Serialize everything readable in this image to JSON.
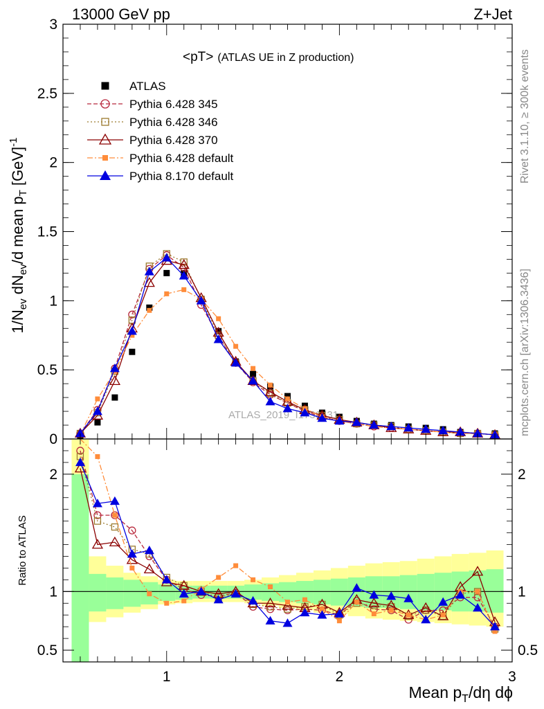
{
  "header": {
    "left": "13000 GeV pp",
    "right": "Z+Jet"
  },
  "side_labels": {
    "rivet": "Rivet 3.1.10, ≥ 300k events",
    "mcplots": "mcplots.cern.ch [arXiv:1306.3436]"
  },
  "watermark": "ATLAS_2019_I1736531",
  "legend_title": {
    "main": "<pT>",
    "sub": "(ATLAS UE in Z production)"
  },
  "colors": {
    "atlas": "#000000",
    "p345": "#b8283c",
    "p346": "#9c7a2e",
    "p370": "#8b0000",
    "pdef": "#ff8c3a",
    "p8": "#0000e0",
    "band_green": "#99ff99",
    "band_yellow": "#ffff99"
  },
  "chart_data": [
    {
      "type": "line",
      "name": "main",
      "ylabel": "1/N_ev dN_ev/d mean p_T [GeV]^-1",
      "xlim": [
        0.4,
        3.0
      ],
      "ylim": [
        0,
        3
      ],
      "yticks": [
        "0",
        "0.5",
        "1",
        "1.5",
        "2",
        "2.5",
        "3"
      ],
      "ytick_values": [
        0,
        0.5,
        1,
        1.5,
        2,
        2.5,
        3
      ],
      "x": [
        0.5,
        0.6,
        0.7,
        0.8,
        0.9,
        1.0,
        1.1,
        1.2,
        1.3,
        1.4,
        1.5,
        1.6,
        1.7,
        1.8,
        1.9,
        2.0,
        2.1,
        2.2,
        2.3,
        2.4,
        2.5,
        2.6,
        2.7,
        2.8,
        2.9
      ],
      "series": [
        {
          "name": "ATLAS",
          "key": "atlas",
          "values": [
            0.02,
            0.12,
            0.3,
            0.63,
            0.95,
            1.2,
            1.2,
            1.0,
            0.78,
            0.56,
            0.47,
            0.38,
            0.31,
            0.24,
            0.19,
            0.16,
            0.13,
            0.11,
            0.1,
            0.09,
            0.08,
            0.07,
            0.05,
            0.04,
            0.04
          ]
        },
        {
          "name": "Pythia 6.428 345",
          "key": "p345",
          "values": [
            0.04,
            0.21,
            0.51,
            0.9,
            1.23,
            1.33,
            1.24,
            0.97,
            0.74,
            0.55,
            0.41,
            0.32,
            0.26,
            0.2,
            0.16,
            0.13,
            0.11,
            0.09,
            0.08,
            0.07,
            0.06,
            0.05,
            0.04,
            0.04,
            0.03
          ]
        },
        {
          "name": "Pythia 6.428 346",
          "key": "p346",
          "values": [
            0.04,
            0.19,
            0.49,
            0.86,
            1.25,
            1.34,
            1.28,
            1.01,
            0.75,
            0.55,
            0.42,
            0.33,
            0.26,
            0.21,
            0.17,
            0.14,
            0.11,
            0.1,
            0.09,
            0.07,
            0.06,
            0.05,
            0.04,
            0.04,
            0.03
          ]
        },
        {
          "name": "Pythia 6.428 370",
          "key": "p370",
          "values": [
            0.04,
            0.17,
            0.42,
            0.8,
            1.13,
            1.29,
            1.26,
            1.02,
            0.77,
            0.56,
            0.42,
            0.34,
            0.27,
            0.21,
            0.17,
            0.14,
            0.12,
            0.1,
            0.08,
            0.07,
            0.06,
            0.05,
            0.05,
            0.04,
            0.03
          ]
        },
        {
          "name": "Pythia 6.428 default",
          "key": "pdef",
          "values": [
            0.03,
            0.29,
            0.49,
            0.75,
            0.93,
            1.05,
            1.08,
            1.01,
            0.87,
            0.67,
            0.51,
            0.39,
            0.29,
            0.22,
            0.16,
            0.13,
            0.11,
            0.09,
            0.08,
            0.07,
            0.06,
            0.05,
            0.04,
            0.04,
            0.03
          ]
        },
        {
          "name": "Pythia 8.170 default",
          "key": "p8",
          "values": [
            0.04,
            0.2,
            0.51,
            0.78,
            1.21,
            1.31,
            1.18,
            1.0,
            0.72,
            0.55,
            0.42,
            0.27,
            0.22,
            0.19,
            0.15,
            0.13,
            0.12,
            0.1,
            0.09,
            0.08,
            0.07,
            0.06,
            0.05,
            0.04,
            0.03
          ]
        }
      ]
    },
    {
      "type": "line",
      "name": "ratio",
      "xlabel": "Mean p_T/dη dϕ",
      "ylabel": "Ratio to ATLAS",
      "xlim": [
        0.4,
        3.0
      ],
      "ylim": [
        0.4,
        2.3
      ],
      "xticks": [
        "1",
        "2",
        "3"
      ],
      "xtick_values": [
        1,
        2,
        3
      ],
      "yticks": [
        "0.5",
        "1",
        "2"
      ],
      "ytick_values": [
        0.5,
        1,
        2
      ],
      "x": [
        0.5,
        0.6,
        0.7,
        0.8,
        0.9,
        1.0,
        1.1,
        1.2,
        1.3,
        1.4,
        1.5,
        1.6,
        1.7,
        1.8,
        1.9,
        2.0,
        2.1,
        2.2,
        2.3,
        2.4,
        2.5,
        2.6,
        2.7,
        2.8,
        2.9
      ],
      "bands": {
        "green_lo": [
          0.3,
          0.83,
          0.85,
          0.87,
          0.89,
          0.92,
          0.93,
          0.94,
          0.94,
          0.94,
          0.93,
          0.92,
          0.91,
          0.9,
          0.89,
          0.88,
          0.87,
          0.86,
          0.86,
          0.85,
          0.84,
          0.84,
          0.83,
          0.83,
          0.82
        ],
        "green_hi": [
          2.0,
          1.15,
          1.12,
          1.1,
          1.08,
          1.06,
          1.05,
          1.05,
          1.05,
          1.05,
          1.06,
          1.07,
          1.08,
          1.09,
          1.1,
          1.11,
          1.12,
          1.13,
          1.13,
          1.14,
          1.15,
          1.16,
          1.17,
          1.18,
          1.19
        ],
        "yellow_lo": [
          0.3,
          0.74,
          0.78,
          0.82,
          0.85,
          0.89,
          0.9,
          0.91,
          0.91,
          0.91,
          0.9,
          0.88,
          0.86,
          0.84,
          0.82,
          0.81,
          0.79,
          0.77,
          0.76,
          0.75,
          0.74,
          0.73,
          0.72,
          0.71,
          0.7
        ],
        "yellow_hi": [
          2.3,
          1.3,
          1.22,
          1.16,
          1.13,
          1.1,
          1.09,
          1.09,
          1.09,
          1.09,
          1.1,
          1.12,
          1.14,
          1.16,
          1.18,
          1.2,
          1.22,
          1.24,
          1.25,
          1.26,
          1.28,
          1.3,
          1.32,
          1.33,
          1.35
        ]
      },
      "series": [
        {
          "name": "Pythia 6.428 345",
          "key": "p345",
          "values": [
            2.2,
            1.65,
            1.65,
            1.52,
            1.3,
            1.1,
            1.02,
            0.97,
            0.96,
            0.99,
            0.87,
            0.85,
            0.84,
            0.85,
            0.84,
            0.8,
            0.92,
            0.85,
            0.84,
            0.76,
            0.84,
            0.84,
            0.95,
            0.95,
            0.7
          ]
        },
        {
          "name": "Pythia 6.428 346",
          "key": "p346",
          "values": [
            2.15,
            1.6,
            1.55,
            1.36,
            1.32,
            1.12,
            1.05,
            1.0,
            0.95,
            0.98,
            0.89,
            0.87,
            0.85,
            0.87,
            0.89,
            0.8,
            0.9,
            0.88,
            0.87,
            0.79,
            0.84,
            0.79,
            0.98,
            1.0,
            0.68
          ]
        },
        {
          "name": "Pythia 6.428 370",
          "key": "p370",
          "values": [
            2.05,
            1.4,
            1.42,
            1.27,
            1.19,
            1.08,
            1.05,
            1.0,
            0.98,
            1.0,
            0.9,
            0.9,
            0.88,
            0.86,
            0.89,
            0.82,
            0.93,
            0.9,
            0.88,
            0.8,
            0.86,
            0.79,
            1.04,
            1.17,
            0.74
          ]
        },
        {
          "name": "Pythia 6.428 default",
          "key": "pdef",
          "values": [
            2.35,
            2.15,
            1.65,
            1.2,
            0.98,
            0.9,
            0.92,
            1.02,
            1.12,
            1.22,
            1.1,
            1.04,
            0.91,
            0.93,
            0.85,
            0.75,
            0.91,
            0.81,
            0.84,
            0.8,
            0.76,
            0.8,
            1.0,
            1.0,
            0.66
          ]
        },
        {
          "name": "Pythia 8.170 default",
          "key": "p8",
          "values": [
            2.1,
            1.75,
            1.77,
            1.32,
            1.35,
            1.1,
            0.98,
            1.0,
            0.93,
            0.98,
            0.92,
            0.75,
            0.73,
            0.82,
            0.8,
            0.81,
            1.03,
            0.97,
            0.96,
            0.94,
            0.76,
            0.91,
            0.97,
            0.86,
            0.7
          ]
        }
      ]
    }
  ]
}
